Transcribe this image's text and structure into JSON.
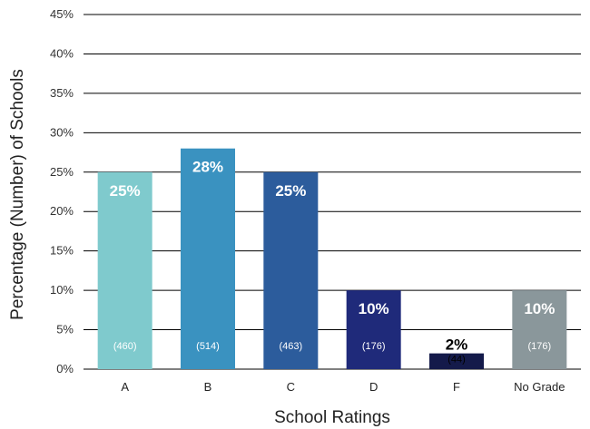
{
  "chart_data": {
    "type": "bar",
    "title": "",
    "xlabel": "School Ratings",
    "ylabel": "Percentage (Number) of Schools",
    "ylim": [
      0,
      45
    ],
    "y_ticks": [
      "0%",
      "5%",
      "10%",
      "15%",
      "20%",
      "25%",
      "30%",
      "35%",
      "40%",
      "45%"
    ],
    "grid": true,
    "categories": [
      "A",
      "B",
      "C",
      "D",
      "F",
      "No Grade"
    ],
    "values": [
      25,
      28,
      25,
      10,
      2,
      10
    ],
    "value_labels": [
      "25%",
      "28%",
      "25%",
      "10%",
      "2%",
      "10%"
    ],
    "count_labels": [
      "(460)",
      "(514)",
      "(463)",
      "(176)",
      "(44)",
      "(176)"
    ],
    "colors": [
      "#7fcacd",
      "#3a92c0",
      "#2c5c9c",
      "#1f2a7a",
      "#141a4a",
      "#8a979b"
    ],
    "label_colors": [
      "#ffffff",
      "#ffffff",
      "#ffffff",
      "#ffffff",
      "#000000",
      "#ffffff"
    ]
  }
}
